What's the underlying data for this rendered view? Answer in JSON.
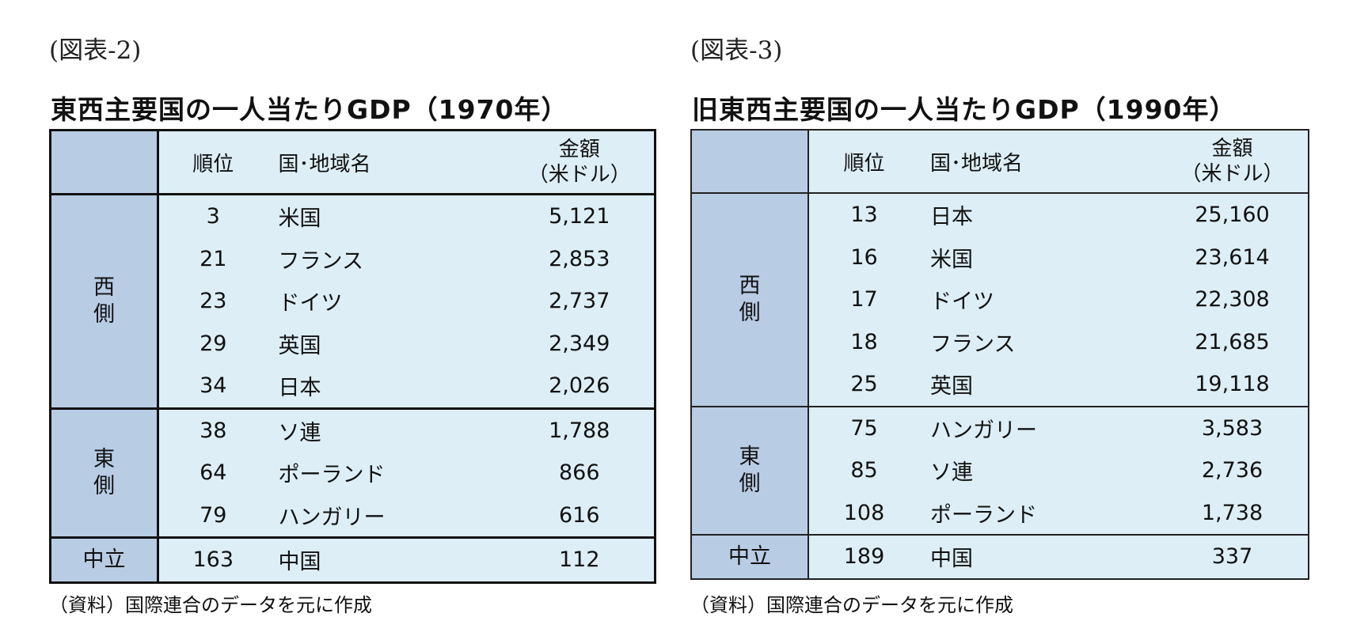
{
  "figures": [
    {
      "label": "(図表-2)",
      "title": "東西主要国の一人当たりGDP（1970年）",
      "header": {
        "rank": "順位",
        "country": "国･地域名",
        "amount_line1": "金額",
        "amount_line2": "（米ドル）"
      },
      "groups": [
        {
          "label": "西側",
          "rows": [
            {
              "rank": "3",
              "country": "米国",
              "amount": "5,121"
            },
            {
              "rank": "21",
              "country": "フランス",
              "amount": "2,853"
            },
            {
              "rank": "23",
              "country": "ドイツ",
              "amount": "2,737"
            },
            {
              "rank": "29",
              "country": "英国",
              "amount": "2,349"
            },
            {
              "rank": "34",
              "country": "日本",
              "amount": "2,026"
            }
          ]
        },
        {
          "label": "東側",
          "rows": [
            {
              "rank": "38",
              "country": "ソ連",
              "amount": "1,788"
            },
            {
              "rank": "64",
              "country": "ポーランド",
              "amount": "866"
            },
            {
              "rank": "79",
              "country": "ハンガリー",
              "amount": "616"
            }
          ]
        },
        {
          "label": "中立",
          "rows": [
            {
              "rank": "163",
              "country": "中国",
              "amount": "112"
            }
          ]
        }
      ],
      "source": "（資料）国際連合のデータを元に作成"
    },
    {
      "label": "(図表-3)",
      "title": "旧東西主要国の一人当たりGDP（1990年）",
      "header": {
        "rank": "順位",
        "country": "国･地域名",
        "amount_line1": "金額",
        "amount_line2": "（米ドル）"
      },
      "groups": [
        {
          "label": "西側",
          "rows": [
            {
              "rank": "13",
              "country": "日本",
              "amount": "25,160"
            },
            {
              "rank": "16",
              "country": "米国",
              "amount": "23,614"
            },
            {
              "rank": "17",
              "country": "ドイツ",
              "amount": "22,308"
            },
            {
              "rank": "18",
              "country": "フランス",
              "amount": "21,685"
            },
            {
              "rank": "25",
              "country": "英国",
              "amount": "19,118"
            }
          ]
        },
        {
          "label": "東側",
          "rows": [
            {
              "rank": "75",
              "country": "ハンガリー",
              "amount": "3,583"
            },
            {
              "rank": "85",
              "country": "ソ連",
              "amount": "2,736"
            },
            {
              "rank": "108",
              "country": "ポーランド",
              "amount": "1,738"
            }
          ]
        },
        {
          "label": "中立",
          "rows": [
            {
              "rank": "189",
              "country": "中国",
              "amount": "337"
            }
          ]
        }
      ],
      "source": "（資料）国際連合のデータを元に作成"
    }
  ]
}
